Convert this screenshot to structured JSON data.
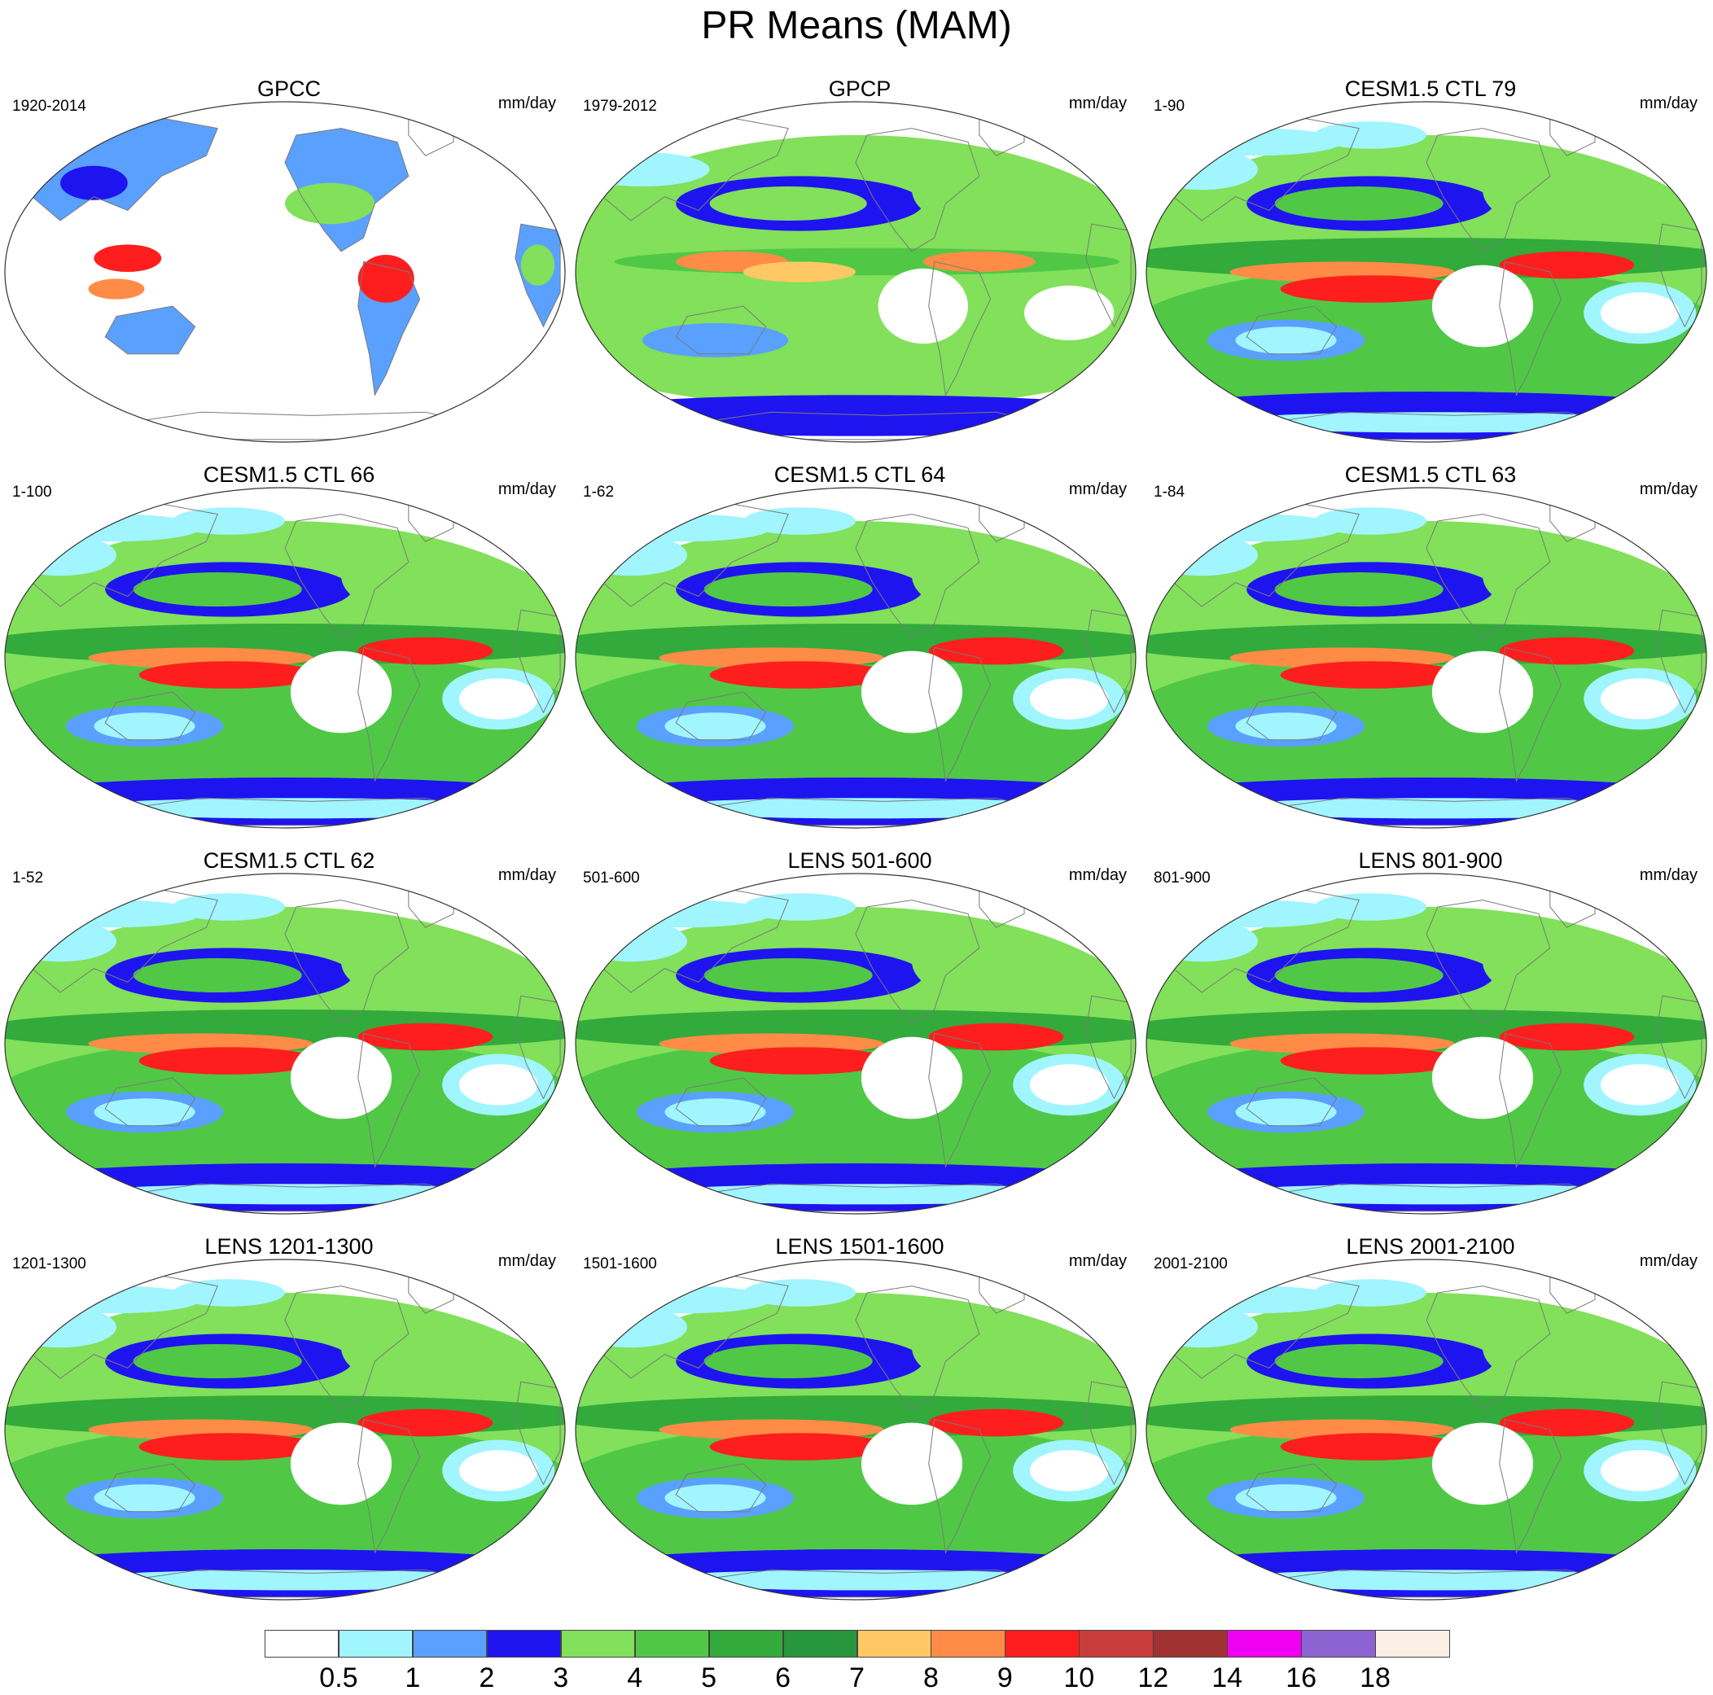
{
  "title": "PR Means (MAM)",
  "chart_data": {
    "type": "heatmap",
    "title": "PR Means (MAM)",
    "projection": "Robinson",
    "variable": "PR",
    "season": "MAM",
    "units": "mm/day",
    "layout": "4 rows x 3 columns",
    "panels": [
      {
        "title": "GPCC",
        "period": "1920-2014",
        "units": "mm/day",
        "land_only": true
      },
      {
        "title": "GPCP",
        "period": "1979-2012",
        "units": "mm/day",
        "land_only": false
      },
      {
        "title": "CESM1.5 CTL 79",
        "period": "1-90",
        "units": "mm/day",
        "land_only": false
      },
      {
        "title": "CESM1.5 CTL 66",
        "period": "1-100",
        "units": "mm/day",
        "land_only": false
      },
      {
        "title": "CESM1.5 CTL 64",
        "period": "1-62",
        "units": "mm/day",
        "land_only": false
      },
      {
        "title": "CESM1.5 CTL 63",
        "period": "1-84",
        "units": "mm/day",
        "land_only": false
      },
      {
        "title": "CESM1.5 CTL 62",
        "period": "1-52",
        "units": "mm/day",
        "land_only": false
      },
      {
        "title": "LENS 501-600",
        "period": "501-600",
        "units": "mm/day",
        "land_only": false
      },
      {
        "title": "LENS 801-900",
        "period": "801-900",
        "units": "mm/day",
        "land_only": false
      },
      {
        "title": "LENS 1201-1300",
        "period": "1201-1300",
        "units": "mm/day",
        "land_only": false
      },
      {
        "title": "LENS 1501-1600",
        "period": "1501-1600",
        "units": "mm/day",
        "land_only": false
      },
      {
        "title": "LENS 2001-2100",
        "period": "2001-2100",
        "units": "mm/day",
        "land_only": false
      }
    ],
    "colorbar": {
      "levels": [
        "0.5",
        "1",
        "2",
        "3",
        "4",
        "5",
        "6",
        "7",
        "8",
        "9",
        "10",
        "12",
        "14",
        "16",
        "18"
      ],
      "colors": [
        "#ffffff",
        "#a0f5ff",
        "#5aa0ff",
        "#1e14f0",
        "#82e05a",
        "#50c846",
        "#32aa3c",
        "#28963c",
        "#ffc864",
        "#ff8c46",
        "#ff1e1e",
        "#c83c3c",
        "#a03232",
        "#f000f0",
        "#8c64d2",
        "#faf0e6"
      ]
    }
  }
}
